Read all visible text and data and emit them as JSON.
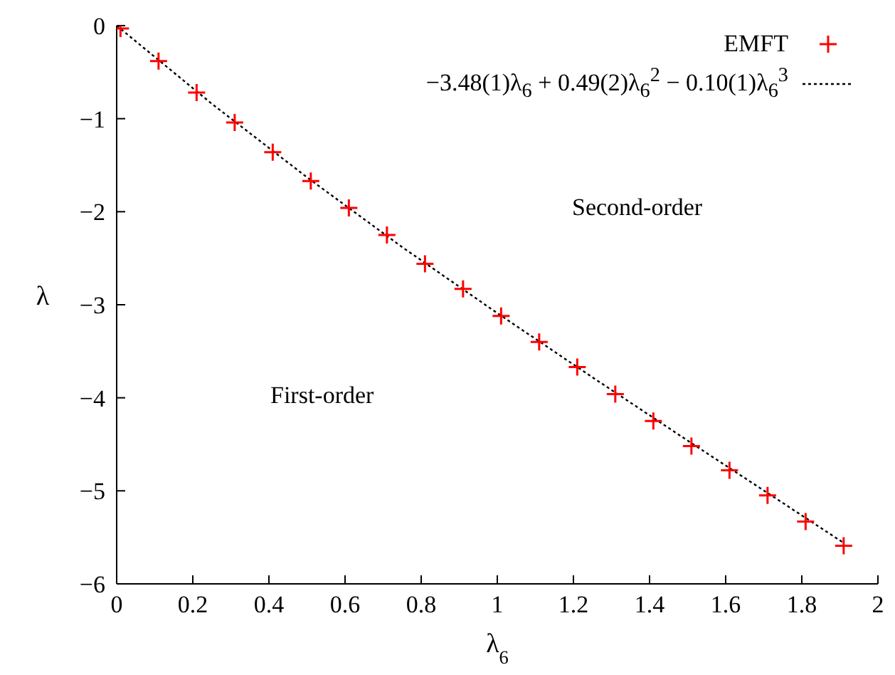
{
  "chart_data": {
    "type": "scatter",
    "xlabel": "λ$_{6}$",
    "ylabel": "λ",
    "xlim": [
      0,
      2
    ],
    "ylim": [
      -6,
      0
    ],
    "xticks": [
      0,
      0.2,
      0.4,
      0.6,
      0.8,
      1,
      1.2,
      1.4,
      1.6,
      1.8,
      2
    ],
    "yticks": [
      -6,
      -5,
      -4,
      -3,
      -2,
      -1,
      0
    ],
    "grid": false,
    "legend": "top right",
    "annotations": [
      "Second-order",
      "First-order"
    ],
    "series": [
      {
        "name": "EMFT",
        "color": "#ff0000",
        "marker": "cross",
        "x": [
          0.01,
          0.11,
          0.21,
          0.31,
          0.41,
          0.51,
          0.61,
          0.71,
          0.81,
          0.91,
          1.01,
          1.11,
          1.21,
          1.31,
          1.41,
          1.51,
          1.61,
          1.71,
          1.81,
          1.91
        ],
        "values": [
          -0.03,
          -0.38,
          -0.72,
          -1.04,
          -1.36,
          -1.67,
          -1.96,
          -2.25,
          -2.56,
          -2.83,
          -3.12,
          -3.4,
          -3.67,
          -3.96,
          -4.25,
          -4.52,
          -4.78,
          -5.05,
          -5.33,
          -5.59
        ]
      },
      {
        "name": "−3.48(1)λ$_{6}$ + 0.49(2)λ$_{6}$$^{2}$ − 0.10(1)λ$_{6}$$^{3}$",
        "type": "line",
        "color": "#000000",
        "line_style": "dashed",
        "marker": "none",
        "x": [
          0,
          0.25,
          0.5,
          0.75,
          1,
          1.25,
          1.5,
          1.75,
          1.91
        ],
        "values": [
          0,
          -0.84,
          -1.63,
          -2.38,
          -3.09,
          -3.78,
          -4.46,
          -5.13,
          -5.56
        ]
      }
    ]
  }
}
